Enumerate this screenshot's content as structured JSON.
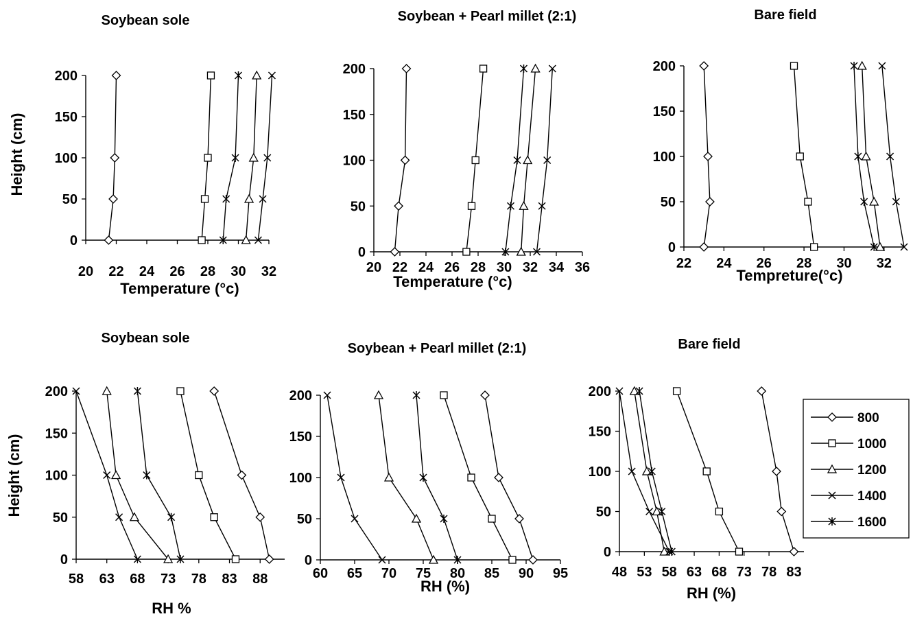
{
  "chart_data": [
    {
      "type": "line",
      "title": "Soybean sole",
      "xlabel": "Temperature (°c)",
      "ylabel": "Height (cm)",
      "xlim": [
        20,
        32
      ],
      "ylim": [
        0,
        200
      ],
      "xticks": [
        "20",
        "22",
        "24",
        "26",
        "28",
        "30",
        "32"
      ],
      "yticks": [
        "0",
        "50",
        "100",
        "150",
        "200"
      ],
      "y": [
        0,
        50,
        100,
        200
      ],
      "series": [
        {
          "name": "800",
          "marker": "diamond",
          "x": [
            21.5,
            21.8,
            21.9,
            22.0
          ]
        },
        {
          "name": "1000",
          "marker": "square",
          "x": [
            27.6,
            27.8,
            28.0,
            28.2
          ]
        },
        {
          "name": "1200",
          "marker": "triangle",
          "x": [
            30.5,
            30.7,
            31.0,
            31.2
          ]
        },
        {
          "name": "1400",
          "marker": "x",
          "x": [
            31.3,
            31.6,
            31.9,
            32.2
          ]
        },
        {
          "name": "1600",
          "marker": "star",
          "x": [
            29.0,
            29.2,
            29.8,
            30.0
          ]
        }
      ]
    },
    {
      "type": "line",
      "title": "Soybean + Pearl millet (2:1)",
      "xlabel": "Temperature (°c)",
      "ylabel": "",
      "xlim": [
        20,
        36
      ],
      "ylim": [
        0,
        200
      ],
      "xticks": [
        "20",
        "22",
        "24",
        "26",
        "28",
        "30",
        "32",
        "34",
        "36"
      ],
      "yticks": [
        "0",
        "50",
        "100",
        "150",
        "200"
      ],
      "y": [
        0,
        50,
        100,
        200
      ],
      "series": [
        {
          "name": "800",
          "marker": "diamond",
          "x": [
            21.6,
            21.9,
            22.4,
            22.5
          ]
        },
        {
          "name": "1000",
          "marker": "square",
          "x": [
            27.1,
            27.5,
            27.8,
            28.4
          ]
        },
        {
          "name": "1200",
          "marker": "triangle",
          "x": [
            31.3,
            31.5,
            31.8,
            32.4
          ]
        },
        {
          "name": "1400",
          "marker": "x",
          "x": [
            32.5,
            32.9,
            33.3,
            33.7
          ]
        },
        {
          "name": "1600",
          "marker": "star",
          "x": [
            30.1,
            30.5,
            31.0,
            31.5
          ]
        }
      ]
    },
    {
      "type": "line",
      "title": "Bare field",
      "xlabel": "Tempreture(°c)",
      "ylabel": "",
      "xlim": [
        22,
        33
      ],
      "ylim": [
        0,
        200
      ],
      "xticks": [
        "22",
        "24",
        "26",
        "28",
        "30",
        "32"
      ],
      "yticks": [
        "0",
        "50",
        "100",
        "150",
        "200"
      ],
      "y": [
        0,
        50,
        100,
        200
      ],
      "series": [
        {
          "name": "800",
          "marker": "diamond",
          "x": [
            23.0,
            23.3,
            23.2,
            23.0
          ]
        },
        {
          "name": "1000",
          "marker": "square",
          "x": [
            28.5,
            28.2,
            27.8,
            27.5
          ]
        },
        {
          "name": "1200",
          "marker": "triangle",
          "x": [
            31.8,
            31.5,
            31.1,
            30.9
          ]
        },
        {
          "name": "1400",
          "marker": "x",
          "x": [
            33.0,
            32.6,
            32.3,
            31.9
          ]
        },
        {
          "name": "1600",
          "marker": "star",
          "x": [
            31.5,
            31.0,
            30.7,
            30.5
          ]
        }
      ]
    },
    {
      "type": "line",
      "title": "Soybean sole",
      "xlabel": "RH %",
      "ylabel": "Height (cm)",
      "xlim": [
        58,
        92
      ],
      "ylim": [
        0,
        200
      ],
      "xticks": [
        "58",
        "63",
        "68",
        "73",
        "78",
        "83",
        "88"
      ],
      "yticks": [
        "0",
        "50",
        "100",
        "150",
        "200"
      ],
      "y": [
        0,
        50,
        100,
        200
      ],
      "series": [
        {
          "name": "800",
          "marker": "diamond",
          "x": [
            89.5,
            88.0,
            85.0,
            80.5
          ]
        },
        {
          "name": "1000",
          "marker": "square",
          "x": [
            84.0,
            80.5,
            78.0,
            75.0
          ]
        },
        {
          "name": "1200",
          "marker": "triangle",
          "x": [
            73.0,
            67.5,
            64.5,
            63.0
          ]
        },
        {
          "name": "1400",
          "marker": "x",
          "x": [
            68.0,
            65.0,
            63.0,
            58.0
          ]
        },
        {
          "name": "1600",
          "marker": "star",
          "x": [
            75.0,
            73.5,
            69.5,
            68.0
          ]
        }
      ]
    },
    {
      "type": "line",
      "title": "Soybean + Pearl millet (2:1)",
      "xlabel": "RH (%)",
      "ylabel": "",
      "xlim": [
        60,
        95
      ],
      "ylim": [
        0,
        200
      ],
      "xticks": [
        "60",
        "65",
        "70",
        "75",
        "80",
        "85",
        "90",
        "95"
      ],
      "yticks": [
        "0",
        "50",
        "100",
        "150",
        "200"
      ],
      "y": [
        0,
        50,
        100,
        200
      ],
      "series": [
        {
          "name": "800",
          "marker": "diamond",
          "x": [
            91.0,
            89.0,
            86.0,
            84.0
          ]
        },
        {
          "name": "1000",
          "marker": "square",
          "x": [
            88.0,
            85.0,
            82.0,
            78.0
          ]
        },
        {
          "name": "1200",
          "marker": "triangle",
          "x": [
            76.5,
            74.0,
            70.0,
            68.5
          ]
        },
        {
          "name": "1400",
          "marker": "x",
          "x": [
            69.0,
            65.0,
            63.0,
            61.0
          ]
        },
        {
          "name": "1600",
          "marker": "star",
          "x": [
            80.0,
            78.0,
            75.0,
            74.0
          ]
        }
      ]
    },
    {
      "type": "line",
      "title": "Bare field",
      "xlabel": "RH (%)",
      "ylabel": "",
      "xlim": [
        48,
        85
      ],
      "ylim": [
        0,
        200
      ],
      "xticks": [
        "48",
        "53",
        "58",
        "63",
        "68",
        "73",
        "78",
        "83"
      ],
      "yticks": [
        "0",
        "50",
        "100",
        "150",
        "200"
      ],
      "y": [
        0,
        50,
        100,
        200
      ],
      "series": [
        {
          "name": "800",
          "marker": "diamond",
          "x": [
            83.0,
            80.5,
            79.5,
            76.5
          ]
        },
        {
          "name": "1000",
          "marker": "square",
          "x": [
            72.0,
            68.0,
            65.5,
            59.5
          ]
        },
        {
          "name": "1200",
          "marker": "triangle",
          "x": [
            57.0,
            55.5,
            53.5,
            51.0
          ]
        },
        {
          "name": "1400",
          "marker": "x",
          "x": [
            58.0,
            54.0,
            50.5,
            48.0
          ]
        },
        {
          "name": "1600",
          "marker": "star",
          "x": [
            58.5,
            56.5,
            54.5,
            52.0
          ]
        }
      ],
      "legend": "right"
    }
  ],
  "legend": {
    "entries": [
      {
        "name": "800",
        "marker": "diamond"
      },
      {
        "name": "1000",
        "marker": "square"
      },
      {
        "name": "1200",
        "marker": "triangle"
      },
      {
        "name": "1400",
        "marker": "x"
      },
      {
        "name": "1600",
        "marker": "star"
      }
    ]
  }
}
